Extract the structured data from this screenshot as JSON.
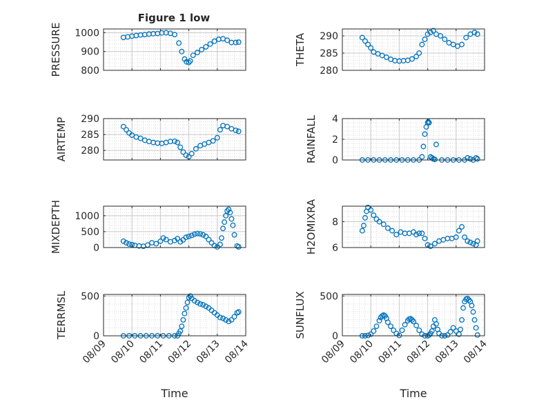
{
  "figure": {
    "title": "Figure 1 low",
    "marker_color": "#0072BD",
    "x_tick_labels": [
      "08/09",
      "08/10",
      "08/11",
      "08/12",
      "08/13",
      "08/14"
    ]
  },
  "chart_data": [
    {
      "type": "scatter",
      "title": "Figure 1 low",
      "ylabel": "PRESSURE",
      "xlabel": "",
      "x_unit": "day of August",
      "xlim": [
        9,
        14
      ],
      "ylim": [
        800,
        1020
      ],
      "yticks": [
        800,
        900,
        1000
      ],
      "grid": true,
      "minor_grid": true,
      "x": [
        9.7,
        9.85,
        10.0,
        10.15,
        10.3,
        10.45,
        10.6,
        10.75,
        10.9,
        11.05,
        11.2,
        11.35,
        11.5,
        11.65,
        11.75,
        11.85,
        11.92,
        12.0,
        12.05,
        12.15,
        12.3,
        12.45,
        12.6,
        12.75,
        12.9,
        13.05,
        13.2,
        13.35,
        13.5,
        13.65,
        13.75
      ],
      "y": [
        975,
        978,
        982,
        985,
        988,
        990,
        993,
        995,
        996,
        999,
        1000,
        997,
        990,
        945,
        900,
        860,
        845,
        842,
        850,
        880,
        895,
        910,
        925,
        940,
        955,
        965,
        968,
        960,
        948,
        948,
        950
      ]
    },
    {
      "type": "scatter",
      "title": "",
      "ylabel": "THETA",
      "xlabel": "",
      "x_unit": "day of August",
      "xlim": [
        9,
        14
      ],
      "ylim": [
        280,
        292
      ],
      "yticks": [
        280,
        285,
        290
      ],
      "grid": true,
      "minor_grid": true,
      "x": [
        9.7,
        9.8,
        9.9,
        10.0,
        10.1,
        10.25,
        10.4,
        10.55,
        10.7,
        10.85,
        11.0,
        11.15,
        11.3,
        11.45,
        11.6,
        11.7,
        11.8,
        11.9,
        12.0,
        12.1,
        12.2,
        12.3,
        12.45,
        12.6,
        12.75,
        12.9,
        13.05,
        13.2,
        13.35,
        13.5,
        13.65,
        13.75
      ],
      "y": [
        289.5,
        288.5,
        287.5,
        286.5,
        285.3,
        284.8,
        284.3,
        283.8,
        283.2,
        282.8,
        282.7,
        282.8,
        282.9,
        283.3,
        284,
        285,
        287.5,
        289,
        290.5,
        291,
        291.5,
        290.5,
        290,
        289,
        288,
        287.5,
        287,
        287.5,
        289.5,
        290.5,
        291,
        290.5
      ]
    },
    {
      "type": "scatter",
      "title": "",
      "ylabel": "AIR_TEMP",
      "ylabel_display": "AIRTEMP",
      "xlabel": "",
      "x_unit": "day of August",
      "xlim": [
        9,
        14
      ],
      "ylim": [
        277,
        290
      ],
      "yticks": [
        280,
        285,
        290
      ],
      "grid": true,
      "minor_grid": true,
      "x": [
        9.7,
        9.8,
        9.9,
        10.0,
        10.15,
        10.3,
        10.45,
        10.6,
        10.75,
        10.9,
        11.05,
        11.2,
        11.35,
        11.5,
        11.6,
        11.7,
        11.8,
        11.9,
        12.0,
        12.1,
        12.25,
        12.4,
        12.55,
        12.7,
        12.85,
        13.0,
        13.1,
        13.2,
        13.35,
        13.5,
        13.65,
        13.75
      ],
      "y": [
        287.5,
        286.5,
        285.5,
        284.8,
        284.2,
        283.8,
        283.2,
        282.8,
        282.5,
        282.3,
        282.2,
        282.5,
        282.8,
        282.9,
        282.5,
        281,
        279.5,
        278.5,
        278,
        279,
        280.5,
        281.5,
        282,
        282.5,
        283,
        284,
        286.5,
        287.8,
        287.5,
        286.8,
        286.3,
        286
      ]
    },
    {
      "type": "scatter",
      "title": "",
      "ylabel": "RAINFALL",
      "xlabel": "",
      "x_unit": "day of August",
      "xlim": [
        9,
        14
      ],
      "ylim": [
        0,
        4
      ],
      "yticks": [
        0,
        2,
        4
      ],
      "grid": true,
      "minor_grid": true,
      "x": [
        9.7,
        9.9,
        10.1,
        10.3,
        10.5,
        10.7,
        10.9,
        11.1,
        11.3,
        11.5,
        11.7,
        11.8,
        11.85,
        11.9,
        11.95,
        12.0,
        12.02,
        12.05,
        12.1,
        12.15,
        12.2,
        12.25,
        12.3,
        12.5,
        12.7,
        12.9,
        13.1,
        13.3,
        13.4,
        13.5,
        13.6,
        13.7,
        13.75
      ],
      "y": [
        0,
        0,
        0,
        0,
        0,
        0,
        0,
        0,
        0,
        0,
        0,
        0.3,
        1.3,
        2.5,
        3.2,
        3.6,
        3.7,
        3.6,
        0.3,
        0.2,
        0.1,
        0.05,
        1.5,
        0,
        0,
        0,
        0,
        0,
        0.2,
        0.1,
        0,
        0.2,
        0.1
      ]
    },
    {
      "type": "scatter",
      "title": "",
      "ylabel": "MIXDEPTH",
      "xlabel": "",
      "x_unit": "day of August",
      "xlim": [
        9,
        14
      ],
      "ylim": [
        0,
        1300
      ],
      "yticks": [
        0,
        500,
        1000
      ],
      "grid": true,
      "minor_grid": true,
      "x": [
        9.7,
        9.8,
        9.9,
        10.0,
        10.1,
        10.25,
        10.4,
        10.55,
        10.7,
        10.85,
        11.0,
        11.1,
        11.2,
        11.35,
        11.5,
        11.6,
        11.7,
        11.8,
        11.9,
        12.0,
        12.1,
        12.2,
        12.3,
        12.4,
        12.5,
        12.6,
        12.7,
        12.8,
        12.9,
        13.0,
        13.1,
        13.15,
        13.2,
        13.25,
        13.3,
        13.35,
        13.4,
        13.45,
        13.5,
        13.55,
        13.6,
        13.7,
        13.75
      ],
      "y": [
        200,
        150,
        110,
        90,
        70,
        50,
        40,
        80,
        150,
        120,
        200,
        300,
        250,
        180,
        220,
        280,
        180,
        240,
        320,
        350,
        380,
        420,
        440,
        430,
        400,
        350,
        250,
        150,
        60,
        20,
        100,
        300,
        600,
        800,
        1000,
        1150,
        1200,
        1100,
        900,
        700,
        400,
        50,
        20
      ]
    },
    {
      "type": "scatter",
      "title": "",
      "ylabel": "H2OMIXRA",
      "xlabel": "",
      "x_unit": "day of August",
      "xlim": [
        9,
        14
      ],
      "ylim": [
        6,
        9.2
      ],
      "yticks": [
        6,
        8
      ],
      "grid": true,
      "minor_grid": true,
      "x": [
        9.7,
        9.75,
        9.8,
        9.85,
        9.9,
        10.0,
        10.1,
        10.2,
        10.3,
        10.45,
        10.6,
        10.75,
        10.9,
        11.05,
        11.2,
        11.35,
        11.5,
        11.6,
        11.7,
        11.8,
        11.9,
        12.0,
        12.1,
        12.25,
        12.4,
        12.55,
        12.7,
        12.85,
        13.0,
        13.1,
        13.2,
        13.3,
        13.4,
        13.5,
        13.6,
        13.7,
        13.75
      ],
      "y": [
        7.3,
        7.7,
        8.3,
        8.8,
        9.1,
        8.9,
        8.5,
        8.2,
        8,
        7.8,
        7.5,
        7.3,
        7,
        7.2,
        7.1,
        7.1,
        7.2,
        7,
        7.1,
        7.1,
        6.7,
        6.2,
        6.1,
        6.3,
        6.5,
        6.6,
        6.7,
        6.7,
        6.8,
        7.3,
        7.6,
        6.8,
        6.5,
        6.4,
        6.3,
        6.2,
        6.5
      ]
    },
    {
      "type": "scatter",
      "title": "",
      "ylabel": "TERR_MSL",
      "ylabel_display": "TERRMSL",
      "xlabel": "Time",
      "x_unit": "day of August",
      "xlim": [
        9,
        14
      ],
      "ylim": [
        0,
        520
      ],
      "yticks": [
        0,
        500
      ],
      "grid": true,
      "minor_grid": true,
      "x": [
        9.7,
        9.9,
        10.1,
        10.3,
        10.5,
        10.7,
        10.9,
        11.1,
        11.3,
        11.5,
        11.6,
        11.65,
        11.7,
        11.75,
        11.8,
        11.85,
        11.9,
        11.95,
        12.0,
        12.05,
        12.1,
        12.2,
        12.3,
        12.4,
        12.5,
        12.6,
        12.7,
        12.8,
        12.9,
        13.0,
        13.1,
        13.2,
        13.3,
        13.4,
        13.5,
        13.6,
        13.7,
        13.75
      ],
      "y": [
        0,
        0,
        0,
        0,
        0,
        0,
        0,
        0,
        0,
        0,
        0,
        30,
        60,
        120,
        200,
        280,
        350,
        420,
        480,
        500,
        470,
        440,
        420,
        400,
        390,
        370,
        350,
        320,
        290,
        260,
        230,
        220,
        200,
        180,
        200,
        240,
        290,
        300
      ]
    },
    {
      "type": "scatter",
      "title": "",
      "ylabel": "SUN_FLUX",
      "ylabel_display": "SUNFLUX",
      "xlabel": "Time",
      "x_unit": "day of August",
      "xlim": [
        9,
        14
      ],
      "ylim": [
        0,
        520
      ],
      "yticks": [
        0,
        500
      ],
      "grid": true,
      "minor_grid": true,
      "x": [
        9.7,
        9.8,
        9.9,
        10.0,
        10.1,
        10.2,
        10.3,
        10.35,
        10.4,
        10.45,
        10.5,
        10.55,
        10.6,
        10.7,
        10.8,
        10.9,
        11.0,
        11.1,
        11.2,
        11.3,
        11.35,
        11.4,
        11.45,
        11.5,
        11.6,
        11.7,
        11.8,
        11.9,
        12.0,
        12.05,
        12.1,
        12.15,
        12.2,
        12.25,
        12.3,
        12.35,
        12.4,
        12.5,
        12.6,
        12.7,
        12.8,
        12.9,
        13.0,
        13.1,
        13.15,
        13.2,
        13.25,
        13.3,
        13.35,
        13.4,
        13.45,
        13.5,
        13.55,
        13.6,
        13.65,
        13.7,
        13.75
      ],
      "y": [
        0,
        0,
        5,
        20,
        60,
        120,
        190,
        230,
        250,
        260,
        250,
        220,
        170,
        120,
        70,
        30,
        5,
        70,
        140,
        190,
        210,
        215,
        200,
        180,
        130,
        70,
        20,
        0,
        0,
        10,
        30,
        60,
        120,
        200,
        150,
        80,
        30,
        0,
        0,
        10,
        50,
        100,
        60,
        20,
        80,
        200,
        350,
        430,
        460,
        470,
        450,
        430,
        380,
        300,
        200,
        100,
        10
      ]
    }
  ]
}
